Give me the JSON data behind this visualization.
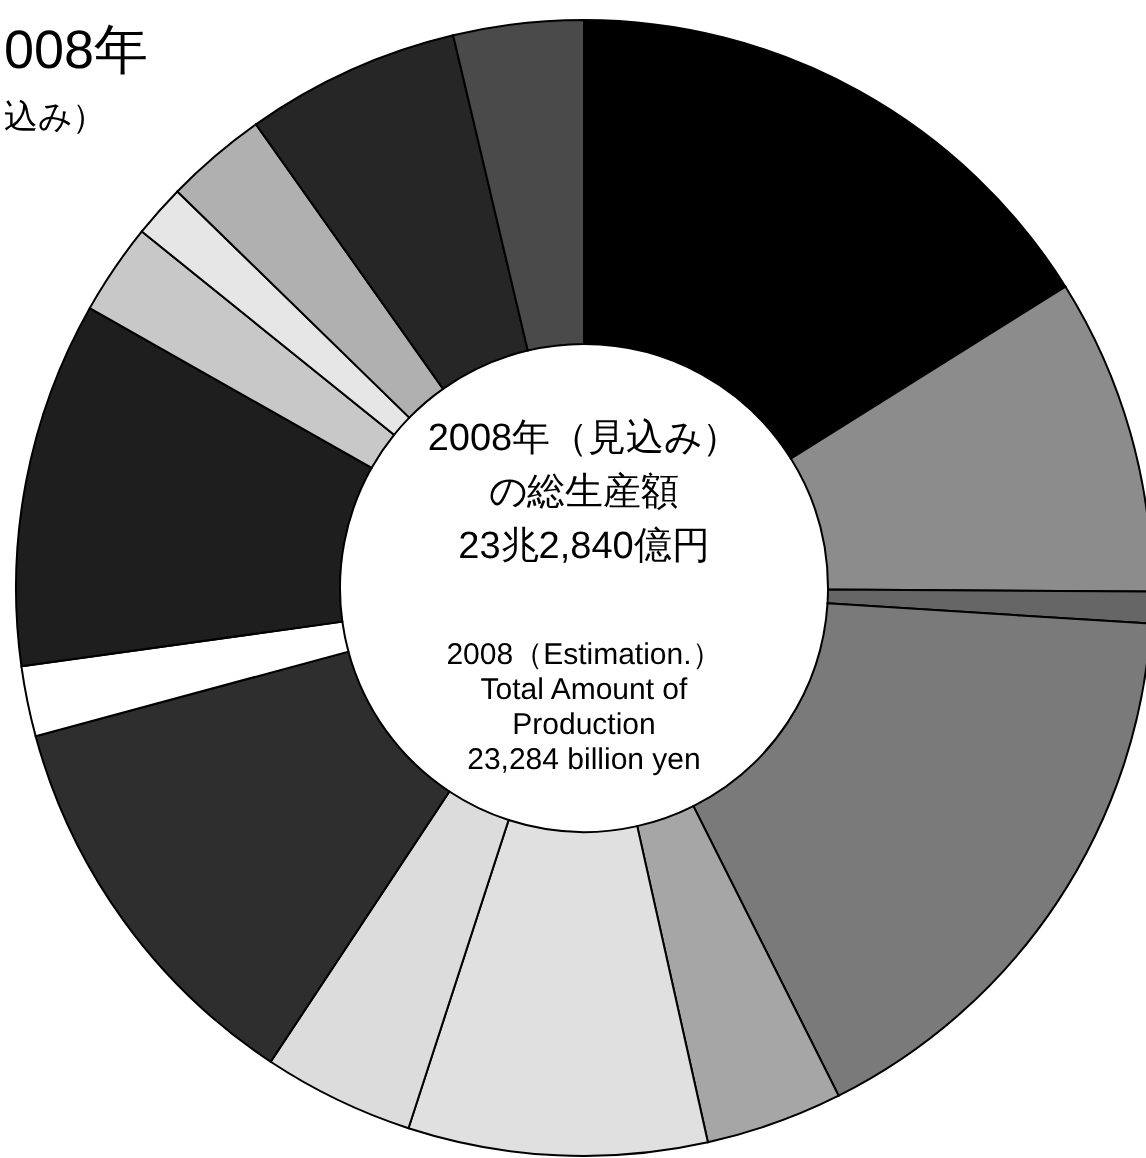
{
  "chart_data": {
    "type": "donut",
    "categories": [
      null,
      null,
      null,
      null,
      null,
      null,
      null,
      null,
      null,
      null,
      null,
      null,
      null,
      null,
      null
    ],
    "values": [
      16.1,
      9.0,
      0.9,
      16.6,
      3.9,
      8.5,
      4.3,
      11.5,
      2.0,
      10.4,
      2.6,
      1.5,
      2.9,
      6.1,
      3.7
    ],
    "colors": [
      "#000000",
      "#8c8c8c",
      "#666666",
      "#7a7a7a",
      "#a6a6a6",
      "#e0e0e0",
      "#dcdcdc",
      "#2e2e2e",
      "#ffffff",
      "#1e1e1e",
      "#c8c8c8",
      "#e6e6e6",
      "#b0b0b0",
      "#262626",
      "#4a4a4a"
    ],
    "annotations": [
      "008年",
      "込み）",
      "2008年（見込み）",
      "の総生産額",
      "23兆2,840億円",
      "2008（Estimation.）",
      "Total Amount of",
      "Production",
      "23,284 billion yen"
    ]
  }
}
